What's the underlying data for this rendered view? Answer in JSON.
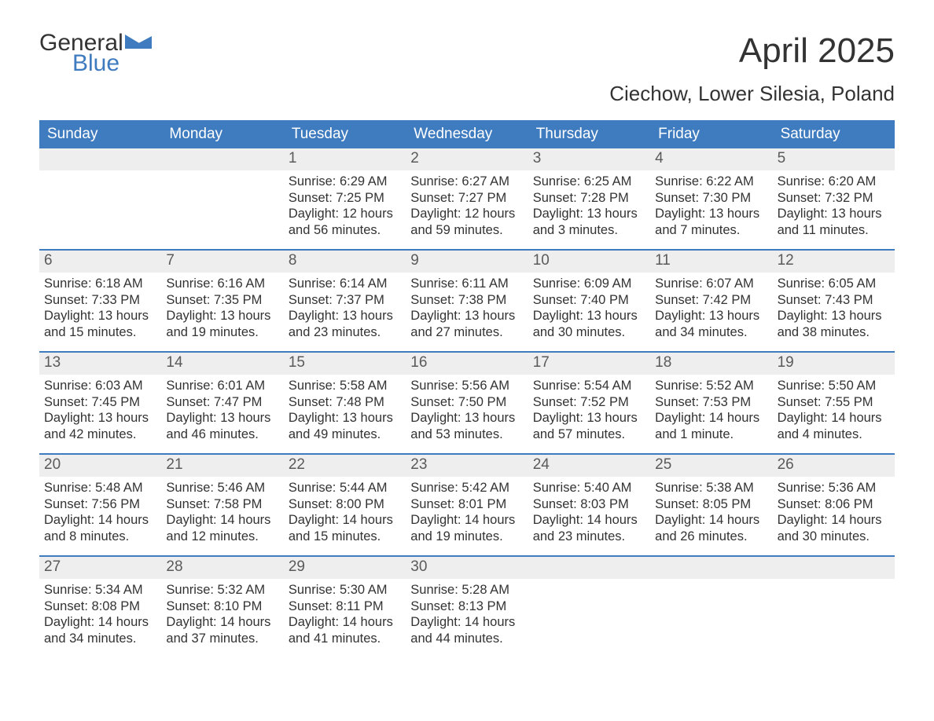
{
  "logo": {
    "word1": "General",
    "word2": "Blue"
  },
  "title": "April 2025",
  "subtitle": "Ciechow, Lower Silesia, Poland",
  "colors": {
    "header_bg": "#3f7bbf",
    "header_text": "#ffffff",
    "daynum_bg": "#eeeeee",
    "body_text": "#333333",
    "logo_blue": "#3f7bbf"
  },
  "weekdays": [
    "Sunday",
    "Monday",
    "Tuesday",
    "Wednesday",
    "Thursday",
    "Friday",
    "Saturday"
  ],
  "weeks": [
    [
      {
        "num": "",
        "lines": []
      },
      {
        "num": "",
        "lines": []
      },
      {
        "num": "1",
        "lines": [
          "Sunrise: 6:29 AM",
          "Sunset: 7:25 PM",
          "Daylight: 12 hours and 56 minutes."
        ]
      },
      {
        "num": "2",
        "lines": [
          "Sunrise: 6:27 AM",
          "Sunset: 7:27 PM",
          "Daylight: 12 hours and 59 minutes."
        ]
      },
      {
        "num": "3",
        "lines": [
          "Sunrise: 6:25 AM",
          "Sunset: 7:28 PM",
          "Daylight: 13 hours and 3 minutes."
        ]
      },
      {
        "num": "4",
        "lines": [
          "Sunrise: 6:22 AM",
          "Sunset: 7:30 PM",
          "Daylight: 13 hours and 7 minutes."
        ]
      },
      {
        "num": "5",
        "lines": [
          "Sunrise: 6:20 AM",
          "Sunset: 7:32 PM",
          "Daylight: 13 hours and 11 minutes."
        ]
      }
    ],
    [
      {
        "num": "6",
        "lines": [
          "Sunrise: 6:18 AM",
          "Sunset: 7:33 PM",
          "Daylight: 13 hours and 15 minutes."
        ]
      },
      {
        "num": "7",
        "lines": [
          "Sunrise: 6:16 AM",
          "Sunset: 7:35 PM",
          "Daylight: 13 hours and 19 minutes."
        ]
      },
      {
        "num": "8",
        "lines": [
          "Sunrise: 6:14 AM",
          "Sunset: 7:37 PM",
          "Daylight: 13 hours and 23 minutes."
        ]
      },
      {
        "num": "9",
        "lines": [
          "Sunrise: 6:11 AM",
          "Sunset: 7:38 PM",
          "Daylight: 13 hours and 27 minutes."
        ]
      },
      {
        "num": "10",
        "lines": [
          "Sunrise: 6:09 AM",
          "Sunset: 7:40 PM",
          "Daylight: 13 hours and 30 minutes."
        ]
      },
      {
        "num": "11",
        "lines": [
          "Sunrise: 6:07 AM",
          "Sunset: 7:42 PM",
          "Daylight: 13 hours and 34 minutes."
        ]
      },
      {
        "num": "12",
        "lines": [
          "Sunrise: 6:05 AM",
          "Sunset: 7:43 PM",
          "Daylight: 13 hours and 38 minutes."
        ]
      }
    ],
    [
      {
        "num": "13",
        "lines": [
          "Sunrise: 6:03 AM",
          "Sunset: 7:45 PM",
          "Daylight: 13 hours and 42 minutes."
        ]
      },
      {
        "num": "14",
        "lines": [
          "Sunrise: 6:01 AM",
          "Sunset: 7:47 PM",
          "Daylight: 13 hours and 46 minutes."
        ]
      },
      {
        "num": "15",
        "lines": [
          "Sunrise: 5:58 AM",
          "Sunset: 7:48 PM",
          "Daylight: 13 hours and 49 minutes."
        ]
      },
      {
        "num": "16",
        "lines": [
          "Sunrise: 5:56 AM",
          "Sunset: 7:50 PM",
          "Daylight: 13 hours and 53 minutes."
        ]
      },
      {
        "num": "17",
        "lines": [
          "Sunrise: 5:54 AM",
          "Sunset: 7:52 PM",
          "Daylight: 13 hours and 57 minutes."
        ]
      },
      {
        "num": "18",
        "lines": [
          "Sunrise: 5:52 AM",
          "Sunset: 7:53 PM",
          "Daylight: 14 hours and 1 minute."
        ]
      },
      {
        "num": "19",
        "lines": [
          "Sunrise: 5:50 AM",
          "Sunset: 7:55 PM",
          "Daylight: 14 hours and 4 minutes."
        ]
      }
    ],
    [
      {
        "num": "20",
        "lines": [
          "Sunrise: 5:48 AM",
          "Sunset: 7:56 PM",
          "Daylight: 14 hours and 8 minutes."
        ]
      },
      {
        "num": "21",
        "lines": [
          "Sunrise: 5:46 AM",
          "Sunset: 7:58 PM",
          "Daylight: 14 hours and 12 minutes."
        ]
      },
      {
        "num": "22",
        "lines": [
          "Sunrise: 5:44 AM",
          "Sunset: 8:00 PM",
          "Daylight: 14 hours and 15 minutes."
        ]
      },
      {
        "num": "23",
        "lines": [
          "Sunrise: 5:42 AM",
          "Sunset: 8:01 PM",
          "Daylight: 14 hours and 19 minutes."
        ]
      },
      {
        "num": "24",
        "lines": [
          "Sunrise: 5:40 AM",
          "Sunset: 8:03 PM",
          "Daylight: 14 hours and 23 minutes."
        ]
      },
      {
        "num": "25",
        "lines": [
          "Sunrise: 5:38 AM",
          "Sunset: 8:05 PM",
          "Daylight: 14 hours and 26 minutes."
        ]
      },
      {
        "num": "26",
        "lines": [
          "Sunrise: 5:36 AM",
          "Sunset: 8:06 PM",
          "Daylight: 14 hours and 30 minutes."
        ]
      }
    ],
    [
      {
        "num": "27",
        "lines": [
          "Sunrise: 5:34 AM",
          "Sunset: 8:08 PM",
          "Daylight: 14 hours and 34 minutes."
        ]
      },
      {
        "num": "28",
        "lines": [
          "Sunrise: 5:32 AM",
          "Sunset: 8:10 PM",
          "Daylight: 14 hours and 37 minutes."
        ]
      },
      {
        "num": "29",
        "lines": [
          "Sunrise: 5:30 AM",
          "Sunset: 8:11 PM",
          "Daylight: 14 hours and 41 minutes."
        ]
      },
      {
        "num": "30",
        "lines": [
          "Sunrise: 5:28 AM",
          "Sunset: 8:13 PM",
          "Daylight: 14 hours and 44 minutes."
        ]
      },
      {
        "num": "",
        "lines": []
      },
      {
        "num": "",
        "lines": []
      },
      {
        "num": "",
        "lines": []
      }
    ]
  ]
}
